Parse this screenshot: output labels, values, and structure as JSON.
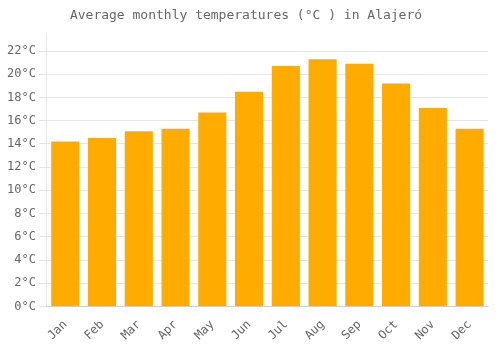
{
  "chart_data": {
    "type": "bar",
    "title": "Average monthly temperatures (°C ) in Alajeró",
    "categories": [
      "Jan",
      "Feb",
      "Mar",
      "Apr",
      "May",
      "Jun",
      "Jul",
      "Aug",
      "Sep",
      "Oct",
      "Nov",
      "Dec"
    ],
    "values": [
      14.2,
      14.5,
      15.1,
      15.3,
      16.7,
      18.5,
      20.7,
      21.3,
      20.9,
      19.2,
      17.1,
      15.3
    ],
    "color": "#FFAB00",
    "ylim": [
      0,
      23.5
    ],
    "yticks": [
      {
        "value": 0,
        "label": "0°C"
      },
      {
        "value": 2,
        "label": "2°C"
      },
      {
        "value": 4,
        "label": "4°C"
      },
      {
        "value": 6,
        "label": "6°C"
      },
      {
        "value": 8,
        "label": "8°C"
      },
      {
        "value": 10,
        "label": "10°C"
      },
      {
        "value": 12,
        "label": "12°C"
      },
      {
        "value": 14,
        "label": "14°C"
      },
      {
        "value": 16,
        "label": "16°C"
      },
      {
        "value": 18,
        "label": "18°C"
      },
      {
        "value": 20,
        "label": "20°C"
      },
      {
        "value": 22,
        "label": "22°C"
      }
    ],
    "grid": true
  }
}
